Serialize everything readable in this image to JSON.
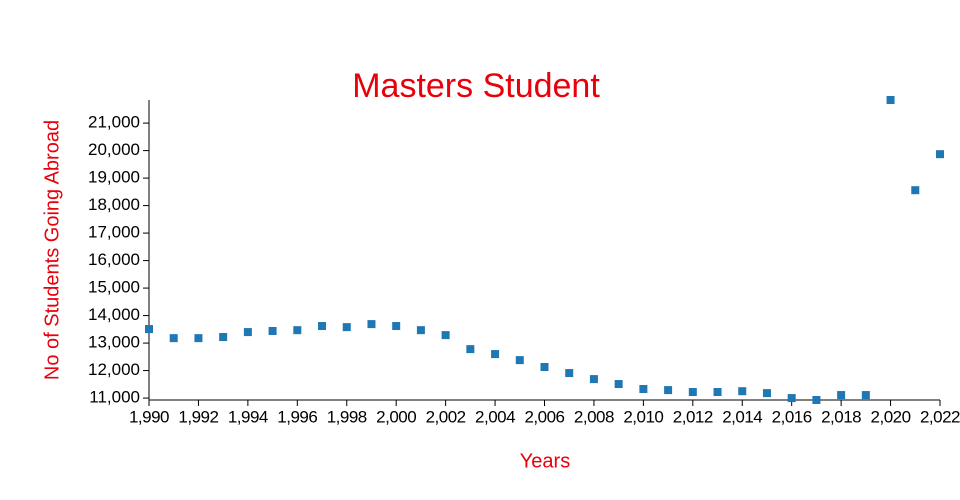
{
  "chart_data": {
    "type": "scatter",
    "title": "Masters Student",
    "x_label": "Years",
    "y_label": "No of Students Going Abroad",
    "color": "#1f77b4",
    "title_color": "#e8000b",
    "x": [
      1990,
      1991,
      1992,
      1993,
      1994,
      1995,
      1996,
      1997,
      1998,
      1999,
      2000,
      2001,
      2002,
      2003,
      2004,
      2005,
      2006,
      2007,
      2008,
      2009,
      2010,
      2011,
      2012,
      2013,
      2014,
      2015,
      2016,
      2017,
      2018,
      2019,
      2020,
      2021,
      2022
    ],
    "values": [
      13510,
      13180,
      13180,
      13220,
      13400,
      13440,
      13470,
      13620,
      13580,
      13690,
      13620,
      13470,
      13290,
      12780,
      12600,
      12380,
      12130,
      11910,
      11690,
      11510,
      11330,
      11290,
      11220,
      11220,
      11250,
      11180,
      11000,
      10930,
      11110,
      11110,
      21840,
      18560,
      19870
    ],
    "xlim": [
      1990,
      2022
    ],
    "ylim": [
      10930,
      21840
    ],
    "xticks": [
      {
        "value": 1990,
        "label": "1,990"
      },
      {
        "value": 1992,
        "label": "1,992"
      },
      {
        "value": 1994,
        "label": "1,994"
      },
      {
        "value": 1996,
        "label": "1,996"
      },
      {
        "value": 1998,
        "label": "1,998"
      },
      {
        "value": 2000,
        "label": "2,000"
      },
      {
        "value": 2002,
        "label": "2,002"
      },
      {
        "value": 2004,
        "label": "2,004"
      },
      {
        "value": 2006,
        "label": "2,006"
      },
      {
        "value": 2008,
        "label": "2,008"
      },
      {
        "value": 2010,
        "label": "2,010"
      },
      {
        "value": 2012,
        "label": "2,012"
      },
      {
        "value": 2014,
        "label": "2,014"
      },
      {
        "value": 2016,
        "label": "2,016"
      },
      {
        "value": 2018,
        "label": "2,018"
      },
      {
        "value": 2020,
        "label": "2,020"
      },
      {
        "value": 2022,
        "label": "2,022"
      }
    ],
    "yticks": [
      {
        "value": 11000,
        "label": "11,000"
      },
      {
        "value": 12000,
        "label": "12,000"
      },
      {
        "value": 13000,
        "label": "13,000"
      },
      {
        "value": 14000,
        "label": "14,000"
      },
      {
        "value": 15000,
        "label": "15,000"
      },
      {
        "value": 16000,
        "label": "16,000"
      },
      {
        "value": 17000,
        "label": "17,000"
      },
      {
        "value": 18000,
        "label": "18,000"
      },
      {
        "value": 19000,
        "label": "19,000"
      },
      {
        "value": 20000,
        "label": "20,000"
      },
      {
        "value": 21000,
        "label": "21,000"
      }
    ]
  }
}
